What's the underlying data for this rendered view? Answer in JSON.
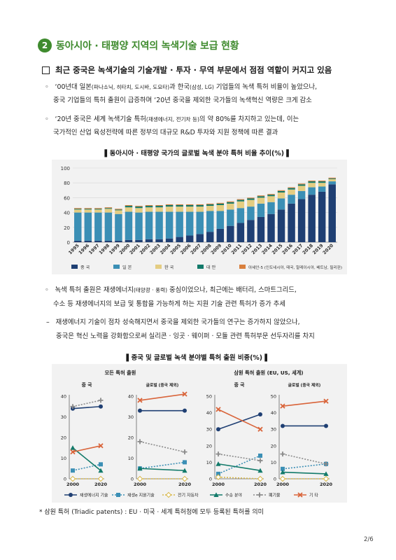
{
  "section": {
    "number": "2",
    "title": "동아시아 · 태평양 지역의 녹색기술 보급 현황"
  },
  "subheading": "최근 중국은 녹색기술의 기술개발 · 투자 · 무역 부문에서 점점 역할이 커지고 있음",
  "bullets": {
    "b1": {
      "marker": "◦",
      "line1_a": "‘00년대 일본",
      "line1_small1": "(파나소닉, 히타치, 도시바, 도요타)",
      "line1_b": "과 한국",
      "line1_small2": "(삼성, LG)",
      "line1_c": " 기업들의 녹색 특허 비율이 높았으나,",
      "line2": "중국 기업들의 특허 출원이 급증하며 ‘20년 중국을 제외한 국가들의 녹색혁신 역량은 크게 감소"
    },
    "b2": {
      "marker": "◦",
      "line1_a": "‘20년 중국은 세계 녹색기술 특허",
      "line1_small": "(재생에너지, 전기차 등)",
      "line1_b": "의 약 80%를 차지하고 있는데, 이는",
      "line2": "국가적인 산업 육성전략에 따른 정부의 대규모 R&D 투자와 지원 정책에 따른 결과"
    },
    "b3": {
      "marker": "◦",
      "line1_a": "녹색 특허 출원은 재생에너지",
      "line1_small": "(태양광 · 풍력)",
      "line1_b": " 중심이었으나, 최근에는 배터리, 스마트그리드,",
      "line2": "수소 등 재생에너지의 보급 및 통합을 가능하게 하는 지원 기술 관련 특허가 증가 추세"
    },
    "b4": {
      "marker": "–",
      "line1": "재생에너지 기술이 점차 성숙해지면서 중국을 제외한 국가들의 연구는 증가하지 않았으나,",
      "line2": "중국은 혁신 노력을 강화함으로써 실리콘 · 잉곳 · 웨이퍼 · 모듈 관련 특허부문 선두자리를 차지"
    }
  },
  "figure1": {
    "title": "▌동아시아 · 태평양 국가의 글로벌 녹색 분야 특허 비율 추이(%) ▌"
  },
  "figure2": {
    "title": "▌중국 및 글로벌 녹색 분야별 특허 출원 비중(%) ▌"
  },
  "footnote": "* 삼원 특허 (Triadic patents) : EU · 미국 · 세계 특허청에 모두 등록된 특허를 의미",
  "page_number": "2/6",
  "colors": {
    "green": "#3f8b2e",
    "china": "#1f3f73",
    "japan": "#3b8fb5",
    "korea": "#e4cd82",
    "taiwan": "#127a6a",
    "asean": "#d9803e",
    "battery": "#1f3f73",
    "smartgrid": "#3b8fb5",
    "ev": "#e4cd82",
    "hydrogen": "#127a6a",
    "waste": "#8a8a8a",
    "other": "#d9643a"
  },
  "chart_data": [
    {
      "type": "bar",
      "stacked": true,
      "categories": [
        "1995",
        "1996",
        "1997",
        "1998",
        "1999",
        "2000",
        "2001",
        "2002",
        "2003",
        "2004",
        "2005",
        "2006",
        "2007",
        "2008",
        "2009",
        "2010",
        "2011",
        "2012",
        "2013",
        "2014",
        "2015",
        "2016",
        "2017",
        "2018",
        "2019",
        "2020"
      ],
      "ylim": [
        0,
        100
      ],
      "yticks": [
        0,
        20,
        40,
        60,
        80,
        100
      ],
      "series": [
        {
          "name": "중 국",
          "color": "#1f3f73",
          "values": [
            2,
            2,
            2,
            2,
            2,
            3,
            3,
            4,
            4,
            5,
            7,
            9,
            11,
            14,
            18,
            22,
            26,
            30,
            34,
            38,
            44,
            52,
            58,
            64,
            68,
            78
          ]
        },
        {
          "name": "일 본",
          "color": "#3b8fb5",
          "values": [
            38,
            38,
            38,
            38,
            36,
            38,
            37,
            37,
            37,
            36,
            34,
            32,
            30,
            28,
            24,
            22,
            20,
            18,
            18,
            16,
            15,
            12,
            11,
            10,
            7,
            4
          ]
        },
        {
          "name": "한 국",
          "color": "#e4cd82",
          "values": [
            4,
            4,
            4,
            5,
            5,
            6,
            6,
            6,
            6,
            7,
            7,
            7,
            7,
            7,
            8,
            8,
            9,
            9,
            8,
            8,
            8,
            7,
            7,
            6,
            5,
            3
          ]
        },
        {
          "name": "대 만",
          "color": "#127a6a",
          "values": [
            1,
            1,
            1,
            1,
            1,
            2,
            2,
            2,
            2,
            2,
            2,
            2,
            2,
            2,
            2,
            2,
            2,
            2,
            2,
            2,
            2,
            2,
            2,
            2,
            2,
            1
          ]
        },
        {
          "name": "아세안-5 (인도네시아, 태국, 말레이시아, 베트남, 필리핀)",
          "color": "#d9803e",
          "values": [
            1,
            1,
            1,
            1,
            1,
            1,
            1,
            1,
            1,
            1,
            1,
            1,
            1,
            1,
            1,
            1,
            1,
            1,
            1,
            1,
            1,
            1,
            1,
            1,
            1,
            1
          ]
        }
      ]
    },
    {
      "type": "line",
      "group": "모든 특허 출원",
      "title": "중 국",
      "x": [
        2000,
        2020
      ],
      "ylim": [
        0,
        40
      ],
      "yticks": [
        0,
        10,
        20,
        30,
        40
      ],
      "series": [
        {
          "name": "재생에너지 기술",
          "values": [
            34,
            35
          ],
          "color": "#1f3f73",
          "marker": "circle",
          "dash": false
        },
        {
          "name": "재생e 지원기술",
          "values": [
            4,
            7
          ],
          "color": "#3b8fb5",
          "marker": "square",
          "dash": true
        },
        {
          "name": "전기 자동차",
          "values": [
            0,
            0
          ],
          "color": "#d8b84a",
          "marker": "diamond",
          "dash": true
        },
        {
          "name": "수송 분야",
          "values": [
            15,
            4
          ],
          "color": "#127a6a",
          "marker": "triangle",
          "dash": false
        },
        {
          "name": "폐기물",
          "values": [
            35,
            38
          ],
          "color": "#8a8a8a",
          "marker": "plus",
          "dash": true
        },
        {
          "name": "기 타",
          "values": [
            13,
            16
          ],
          "color": "#d9643a",
          "marker": "x",
          "dash": false
        }
      ]
    },
    {
      "type": "line",
      "group": "모든 특허 출원",
      "title": "글로벌 (중국 제외)",
      "x": [
        2000,
        2020
      ],
      "ylim": [
        0,
        40
      ],
      "yticks": [
        0,
        10,
        20,
        30,
        40
      ],
      "series": [
        {
          "name": "재생에너지 기술",
          "values": [
            33,
            33
          ],
          "color": "#1f3f73",
          "marker": "circle",
          "dash": false
        },
        {
          "name": "재생e 지원기술",
          "values": [
            5,
            8
          ],
          "color": "#3b8fb5",
          "marker": "square",
          "dash": true
        },
        {
          "name": "전기 자동차",
          "values": [
            0,
            0
          ],
          "color": "#d8b84a",
          "marker": "diamond",
          "dash": true
        },
        {
          "name": "수송 분야",
          "values": [
            5,
            4
          ],
          "color": "#127a6a",
          "marker": "triangle",
          "dash": false
        },
        {
          "name": "폐기물",
          "values": [
            18,
            13
          ],
          "color": "#8a8a8a",
          "marker": "plus",
          "dash": true
        },
        {
          "name": "기 타",
          "values": [
            38,
            41
          ],
          "color": "#d9643a",
          "marker": "x",
          "dash": false
        }
      ]
    },
    {
      "type": "line",
      "group": "삼원 특허 출원 (EU, US, 세계)",
      "title": "중 국",
      "x": [
        2000,
        2020
      ],
      "ylim": [
        0,
        50
      ],
      "yticks": [
        0,
        10,
        20,
        30,
        40,
        50
      ],
      "series": [
        {
          "name": "재생에너지 기술",
          "values": [
            30,
            39
          ],
          "color": "#1f3f73",
          "marker": "circle",
          "dash": false
        },
        {
          "name": "재생e 지원기술",
          "values": [
            3,
            14
          ],
          "color": "#3b8fb5",
          "marker": "square",
          "dash": true
        },
        {
          "name": "전기 자동차",
          "values": [
            1,
            0
          ],
          "color": "#d8b84a",
          "marker": "diamond",
          "dash": true
        },
        {
          "name": "수송 분야",
          "values": [
            9,
            5
          ],
          "color": "#127a6a",
          "marker": "triangle",
          "dash": false
        },
        {
          "name": "폐기물",
          "values": [
            15,
            11
          ],
          "color": "#8a8a8a",
          "marker": "plus",
          "dash": true
        },
        {
          "name": "기 타",
          "values": [
            42,
            30
          ],
          "color": "#d9643a",
          "marker": "x",
          "dash": false
        }
      ]
    },
    {
      "type": "line",
      "group": "삼원 특허 출원 (EU, US, 세계)",
      "title": "글로벌 (중국 제외)",
      "x": [
        2000,
        2020
      ],
      "ylim": [
        0,
        50
      ],
      "yticks": [
        0,
        10,
        20,
        30,
        40,
        50
      ],
      "series": [
        {
          "name": "재생에너지 기술",
          "values": [
            32,
            32
          ],
          "color": "#1f3f73",
          "marker": "circle",
          "dash": false
        },
        {
          "name": "재생e 지원기술",
          "values": [
            6,
            9
          ],
          "color": "#3b8fb5",
          "marker": "square",
          "dash": true
        },
        {
          "name": "전기 자동차",
          "values": [
            0,
            0
          ],
          "color": "#d8b84a",
          "marker": "diamond",
          "dash": true
        },
        {
          "name": "수송 분야",
          "values": [
            4,
            3
          ],
          "color": "#127a6a",
          "marker": "triangle",
          "dash": false
        },
        {
          "name": "폐기물",
          "values": [
            15,
            9
          ],
          "color": "#8a8a8a",
          "marker": "plus",
          "dash": true
        },
        {
          "name": "기 타",
          "values": [
            44,
            47
          ],
          "color": "#d9643a",
          "marker": "x",
          "dash": false
        }
      ]
    }
  ]
}
